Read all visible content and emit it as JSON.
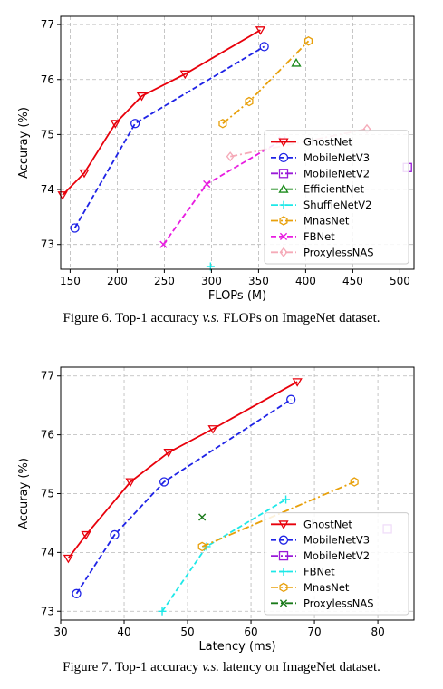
{
  "chart_data": [
    {
      "type": "line",
      "xlabel": "FLOPs (M)",
      "ylabel": "Accuray (%)",
      "xlim": [
        140,
        515
      ],
      "ylim": [
        72.55,
        77.15
      ],
      "xticks": [
        150,
        200,
        250,
        300,
        350,
        400,
        450,
        500
      ],
      "yticks": [
        73,
        74,
        75,
        76,
        77
      ],
      "grid": true,
      "legend": "lower right",
      "caption": {
        "prefix": "Figure 6. Top-1 accuracy ",
        "vs": "v.s.",
        "suffix": " FLOPs on ImageNet dataset."
      },
      "series": [
        {
          "name": "GhostNet",
          "color": "#e8000b",
          "marker": "tri_down",
          "linestyle": "solid",
          "x": [
            142,
            165,
            198,
            226,
            272,
            352
          ],
          "y": [
            73.9,
            74.3,
            75.2,
            75.7,
            76.1,
            76.9
          ]
        },
        {
          "name": "MobileNetV3",
          "color": "#1f23e6",
          "marker": "circle",
          "linestyle": "dashed",
          "x": [
            155,
            219,
            356
          ],
          "y": [
            73.3,
            75.2,
            76.6
          ]
        },
        {
          "name": "MobileNetV2",
          "color": "#9a1bd8",
          "marker": "square",
          "linestyle": "dashdot",
          "x": [
            508
          ],
          "y": [
            74.4
          ]
        },
        {
          "name": "EfficientNet",
          "color": "#1a8a1a",
          "marker": "tri_up",
          "linestyle": "dashdot",
          "x": [
            390
          ],
          "y": [
            76.3
          ]
        },
        {
          "name": "ShuffleNetV2",
          "color": "#1de8e8",
          "marker": "plus",
          "linestyle": "dashdot",
          "x": [
            299
          ],
          "y": [
            72.6
          ]
        },
        {
          "name": "MnasNet",
          "color": "#e8a00b",
          "marker": "hexagon",
          "linestyle": "dashdot",
          "x": [
            312,
            340,
            403
          ],
          "y": [
            75.2,
            75.6,
            76.7
          ]
        },
        {
          "name": "FBNet",
          "color": "#e81de0",
          "marker": "x",
          "linestyle": "dashed",
          "x": [
            249,
            295,
            375
          ],
          "y": [
            73.0,
            74.1,
            74.9
          ]
        },
        {
          "name": "ProxylessNAS",
          "color": "#f5aab8",
          "marker": "diamond",
          "linestyle": "dashdot",
          "x": [
            320,
            465
          ],
          "y": [
            74.6,
            75.1
          ]
        }
      ]
    },
    {
      "type": "line",
      "xlabel": "Latency (ms)",
      "ylabel": "Accuray (%)",
      "xlim": [
        30,
        85.7
      ],
      "ylim": [
        72.85,
        77.15
      ],
      "xticks": [
        30,
        40,
        50,
        60,
        70,
        80
      ],
      "yticks": [
        73,
        74,
        75,
        76,
        77
      ],
      "grid": true,
      "legend": "lower right",
      "caption": {
        "prefix": "Figure 7. Top-1 accuracy ",
        "vs": "v.s.",
        "suffix": " latency on ImageNet dataset."
      },
      "series": [
        {
          "name": "GhostNet",
          "color": "#e8000b",
          "marker": "tri_down",
          "linestyle": "solid",
          "x": [
            31.2,
            34.0,
            41.0,
            47.0,
            54.0,
            67.3
          ],
          "y": [
            73.9,
            74.3,
            75.2,
            75.7,
            76.1,
            76.9
          ]
        },
        {
          "name": "MobileNetV3",
          "color": "#1f23e6",
          "marker": "circle",
          "linestyle": "dashed",
          "x": [
            32.5,
            38.5,
            46.3,
            66.3
          ],
          "y": [
            73.3,
            74.3,
            75.2,
            76.6
          ]
        },
        {
          "name": "MobileNetV2",
          "color": "#9a1bd8",
          "marker": "square",
          "linestyle": "dashdot",
          "x": [
            81.5
          ],
          "y": [
            74.4
          ]
        },
        {
          "name": "FBNet",
          "color": "#1de8e8",
          "marker": "plus",
          "linestyle": "dashed",
          "x": [
            46.0,
            53.0,
            65.5
          ],
          "y": [
            73.0,
            74.1,
            74.9
          ]
        },
        {
          "name": "MnasNet",
          "color": "#e8a00b",
          "marker": "hexagon",
          "linestyle": "dashdot",
          "x": [
            52.3,
            76.3
          ],
          "y": [
            74.1,
            75.2
          ]
        },
        {
          "name": "ProxylessNAS",
          "color": "#1a7a1a",
          "marker": "x",
          "linestyle": "dashdot",
          "x": [
            52.3
          ],
          "y": [
            74.6
          ]
        }
      ]
    }
  ]
}
